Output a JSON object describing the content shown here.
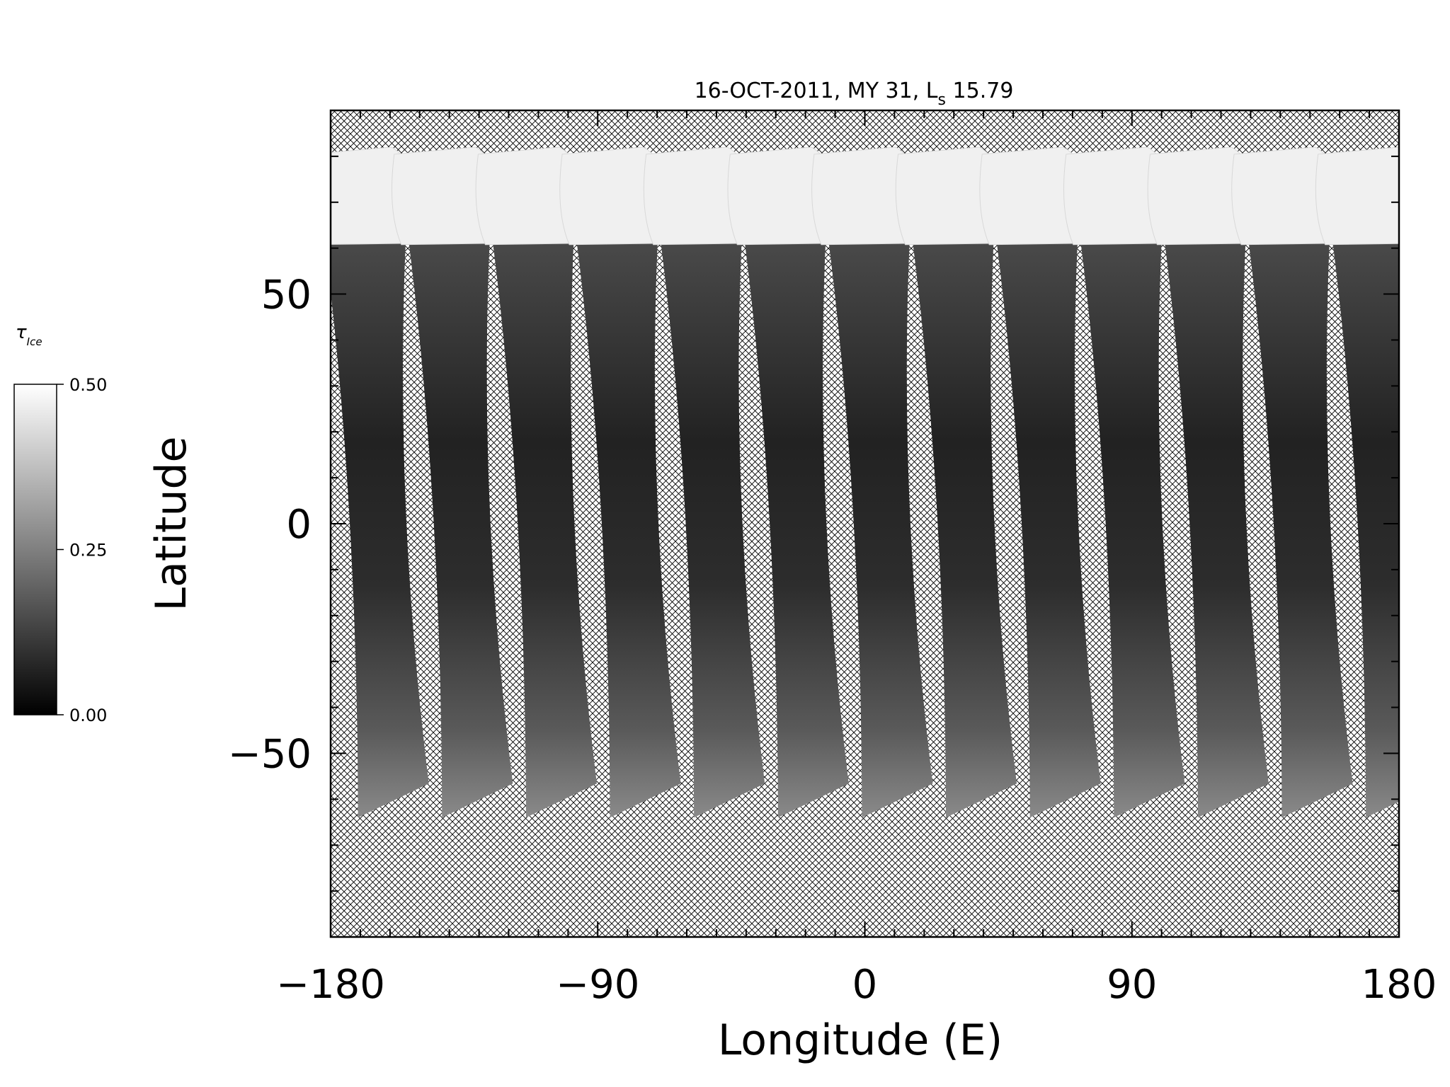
{
  "title": {
    "main": "16-OCT-2011, MY 31,  L",
    "subscript": "s",
    "value": " 15.79"
  },
  "axes": {
    "xlabel": "Longitude (E)",
    "ylabel": "Latitude",
    "xticks": [
      {
        "value": -180,
        "label": "−180"
      },
      {
        "value": -90,
        "label": "−90"
      },
      {
        "value": 0,
        "label": "0"
      },
      {
        "value": 90,
        "label": "90"
      },
      {
        "value": 180,
        "label": "180"
      }
    ],
    "yticks": [
      {
        "value": 50,
        "label": "50"
      },
      {
        "value": 0,
        "label": "0"
      },
      {
        "value": -50,
        "label": "−50"
      }
    ],
    "xlim": [
      -180,
      180
    ],
    "ylim": [
      -90,
      90
    ]
  },
  "colorbar": {
    "symbol": "τ",
    "subscript": "Ice",
    "ticks": [
      {
        "value": 0.5,
        "label": "0.50"
      },
      {
        "value": 0.25,
        "label": "0.25"
      },
      {
        "value": 0.0,
        "label": "0.00"
      }
    ],
    "range": [
      0.0,
      0.5
    ],
    "colormap": "grayscale"
  },
  "map": {
    "swath_count": 13,
    "swath_spacing_deg": 28.3,
    "north_cap_lat": 62,
    "north_limit_lat": 82,
    "south_limit_lat": -64,
    "no_data_pattern": "cross-hatch",
    "colors": {
      "swath_dark": "#262626",
      "cap": "#f2f2f2",
      "hatch": "#000000"
    }
  }
}
